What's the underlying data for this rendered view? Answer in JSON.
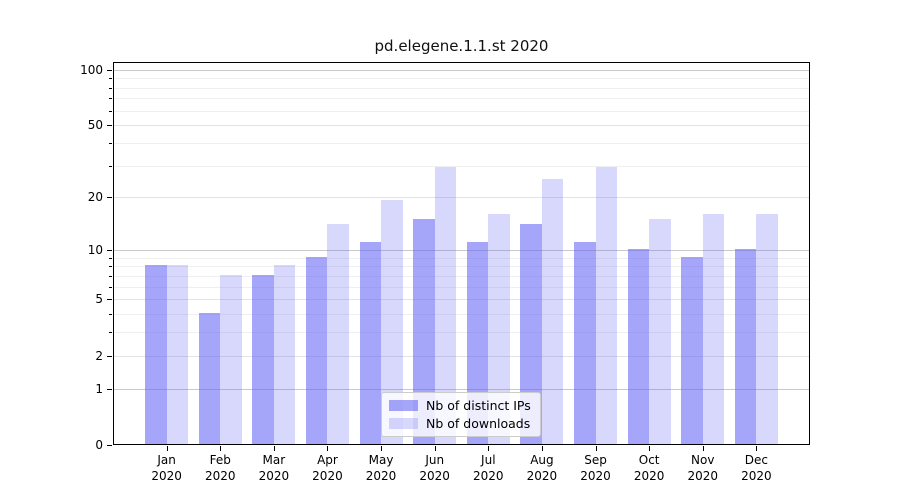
{
  "figure": {
    "background": "#ffffff"
  },
  "chart_data": {
    "type": "bar",
    "title": "pd.elegene.1.1.st 2020",
    "categories": [
      "Jan",
      "Feb",
      "Mar",
      "Apr",
      "May",
      "Jun",
      "Jul",
      "Aug",
      "Sep",
      "Oct",
      "Nov",
      "Dec"
    ],
    "category_year": "2020",
    "series": [
      {
        "name": "Nb of distinct IPs",
        "color": "rgba(100,100,245,0.58)",
        "values": [
          8,
          4,
          7,
          9,
          11,
          15,
          11,
          14,
          11,
          10,
          9,
          10
        ]
      },
      {
        "name": "Nb of downloads",
        "color": "rgba(100,100,245,0.25)",
        "values": [
          8,
          7,
          8,
          14,
          19,
          29,
          16,
          25,
          29,
          15,
          16,
          16
        ]
      }
    ],
    "xlabel": "",
    "ylabel": "",
    "yscale": "log1p",
    "ylim": [
      0,
      110
    ],
    "yticks": [
      0,
      1,
      2,
      5,
      10,
      20,
      50,
      100
    ],
    "yticks_minor": [
      3,
      4,
      6,
      7,
      8,
      9,
      30,
      40,
      60,
      70,
      80,
      90
    ],
    "grid": true,
    "legend_position": "lower center"
  },
  "legend": {
    "items": [
      {
        "label": "Nb of distinct IPs",
        "swatch_color": "rgba(100,100,245,0.58)"
      },
      {
        "label": "Nb of downloads",
        "swatch_color": "rgba(100,100,245,0.25)"
      }
    ]
  },
  "colors": {
    "bar_base": "#6464f5",
    "axis": "#000000",
    "grid_decade": "#c9c9c9",
    "grid_major": "#e3e3e3",
    "grid_minor": "#efefef",
    "legend_border": "#cccccc",
    "legend_bg": "rgba(255,255,255,0.8)"
  }
}
